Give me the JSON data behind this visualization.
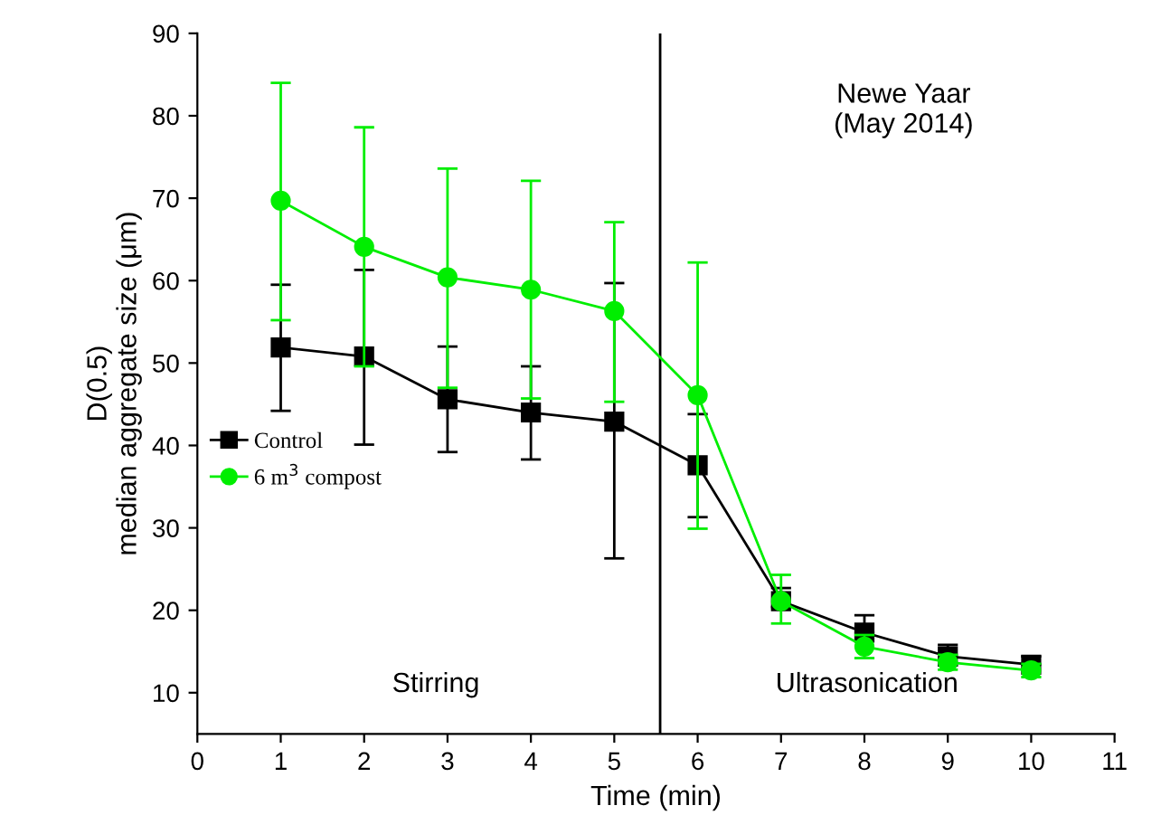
{
  "chart_data": {
    "type": "line",
    "xlabel": "Time (min)",
    "ylabel": "D(0.5)\nmedian aggregate size (μm)",
    "x": [
      1,
      2,
      3,
      4,
      5,
      6,
      7,
      8,
      9,
      10
    ],
    "series": [
      {
        "name": "Control",
        "color": "#000000",
        "marker": "square",
        "values": [
          51.9,
          50.8,
          45.6,
          44.0,
          42.9,
          37.6,
          21.1,
          17.3,
          14.4,
          13.4
        ],
        "errors": [
          [
            44.2,
            59.5
          ],
          [
            40.1,
            61.3
          ],
          [
            39.2,
            52.0
          ],
          [
            38.3,
            49.6
          ],
          [
            26.3,
            59.7
          ],
          [
            31.3,
            43.8
          ],
          [
            20.4,
            22.7
          ],
          [
            17.3,
            19.4
          ],
          [
            13.3,
            15.8
          ],
          [
            13.4,
            14.4
          ]
        ]
      },
      {
        "name": "6 m$^{3}$ compost",
        "color": "#00ee00",
        "marker": "circle",
        "values": [
          69.7,
          64.1,
          60.4,
          58.9,
          56.3,
          46.1,
          21.1,
          15.6,
          13.7,
          12.7
        ],
        "errors": [
          [
            55.2,
            84.0
          ],
          [
            49.6,
            78.6
          ],
          [
            47.0,
            73.6
          ],
          [
            45.7,
            72.1
          ],
          [
            45.3,
            67.1
          ],
          [
            29.9,
            62.2
          ],
          [
            18.4,
            24.3
          ],
          [
            14.2,
            17.0
          ],
          [
            12.8,
            14.6
          ],
          [
            11.9,
            13.5
          ]
        ]
      }
    ],
    "xlim": [
      0,
      11
    ],
    "xticks": [
      0,
      1,
      2,
      3,
      4,
      5,
      6,
      7,
      8,
      9,
      10,
      11
    ],
    "ylim": [
      5,
      90
    ],
    "yticks": [
      10,
      20,
      30,
      40,
      50,
      60,
      70,
      80,
      90
    ],
    "ref_lines": [
      {
        "axis": "x",
        "value": 5.55,
        "color": "#000000"
      }
    ],
    "annotations": [
      "Newe Yaar\n(May 2014)",
      "Stirring",
      "Ultrasonication"
    ],
    "legend": "left",
    "grid": false
  }
}
